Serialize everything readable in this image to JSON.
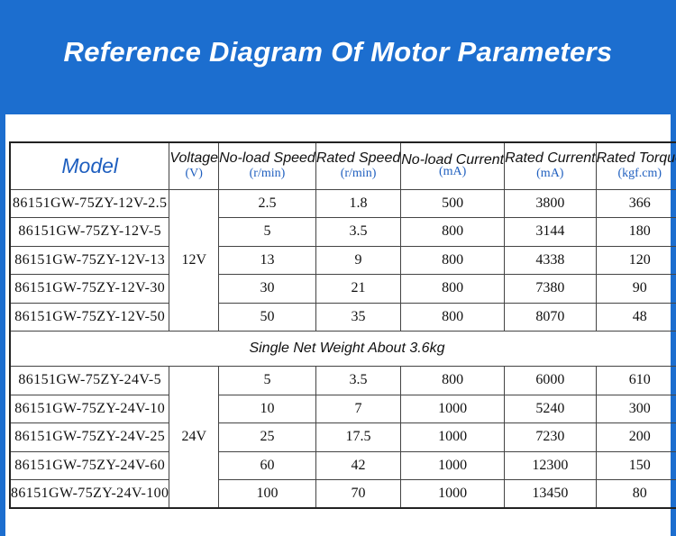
{
  "title": "Reference Diagram Of Motor Parameters",
  "table": {
    "headers": {
      "model": "Model",
      "voltage": {
        "name": "Voltage",
        "unit": "(V)"
      },
      "noload_speed": {
        "name": "No-load Speed",
        "unit": "(r/min)"
      },
      "rated_speed": {
        "name": "Rated Speed",
        "unit": "(r/min)"
      },
      "noload_current": {
        "name": "No-load Current",
        "unit": "(mA)"
      },
      "rated_current": {
        "name": "Rated Current",
        "unit": "(mA)"
      },
      "rated_torque": {
        "name": "Rated Torque",
        "unit": "(kgf.cm)"
      }
    },
    "group_12v": {
      "voltage": "12V",
      "rows": [
        {
          "model": "86151GW-75ZY-12V-2.5",
          "noload_speed": "2.5",
          "rated_speed": "1.8",
          "noload_current": "500",
          "rated_current": "3800",
          "rated_torque": "366"
        },
        {
          "model": "86151GW-75ZY-12V-5",
          "noload_speed": "5",
          "rated_speed": "3.5",
          "noload_current": "800",
          "rated_current": "3144",
          "rated_torque": "180"
        },
        {
          "model": "86151GW-75ZY-12V-13",
          "noload_speed": "13",
          "rated_speed": "9",
          "noload_current": "800",
          "rated_current": "4338",
          "rated_torque": "120"
        },
        {
          "model": "86151GW-75ZY-12V-30",
          "noload_speed": "30",
          "rated_speed": "21",
          "noload_current": "800",
          "rated_current": "7380",
          "rated_torque": "90"
        },
        {
          "model": "86151GW-75ZY-12V-50",
          "noload_speed": "50",
          "rated_speed": "35",
          "noload_current": "800",
          "rated_current": "8070",
          "rated_torque": "48"
        }
      ]
    },
    "weight_note": "Single Net Weight About 3.6kg",
    "group_24v": {
      "voltage": "24V",
      "rows": [
        {
          "model": "86151GW-75ZY-24V-5",
          "noload_speed": "5",
          "rated_speed": "3.5",
          "noload_current": "800",
          "rated_current": "6000",
          "rated_torque": "610"
        },
        {
          "model": "86151GW-75ZY-24V-10",
          "noload_speed": "10",
          "rated_speed": "7",
          "noload_current": "1000",
          "rated_current": "5240",
          "rated_torque": "300"
        },
        {
          "model": "86151GW-75ZY-24V-25",
          "noload_speed": "25",
          "rated_speed": "17.5",
          "noload_current": "1000",
          "rated_current": "7230",
          "rated_torque": "200"
        },
        {
          "model": "86151GW-75ZY-24V-60",
          "noload_speed": "60",
          "rated_speed": "42",
          "noload_current": "1000",
          "rated_current": "12300",
          "rated_torque": "150"
        },
        {
          "model": "86151GW-75ZY-24V-100",
          "noload_speed": "100",
          "rated_speed": "70",
          "noload_current": "1000",
          "rated_current": "13450",
          "rated_torque": "80"
        }
      ]
    }
  }
}
